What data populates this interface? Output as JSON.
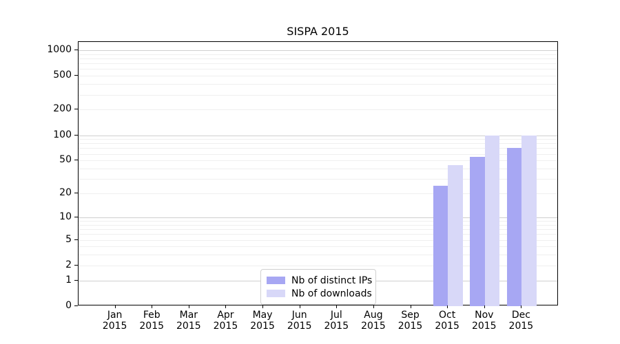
{
  "chart_data": {
    "type": "bar",
    "title": "SISPA 2015",
    "categories": [
      "Jan\n2015",
      "Feb\n2015",
      "Mar\n2015",
      "Apr\n2015",
      "May\n2015",
      "Jun\n2015",
      "Jul\n2015",
      "Aug\n2015",
      "Sep\n2015",
      "Oct\n2015",
      "Nov\n2015",
      "Dec\n2015"
    ],
    "series": [
      {
        "name": "Nb of distinct IPs",
        "color": "#a7a7f3",
        "values": [
          0,
          0,
          0,
          0,
          0,
          0,
          0,
          0,
          0,
          25,
          55,
          70
        ]
      },
      {
        "name": "Nb of downloads",
        "color": "#d8d8f8",
        "values": [
          0,
          0,
          0,
          0,
          0,
          0,
          0,
          0,
          0,
          44,
          100,
          100
        ]
      }
    ],
    "yticks": [
      0,
      1,
      2,
      5,
      10,
      20,
      50,
      100,
      200,
      500,
      1000
    ],
    "ylim": [
      0,
      1250
    ],
    "xlabel": "",
    "ylabel": "",
    "yscale": "log(1+x)",
    "grid": "horizontal major+minor",
    "legend_position": "lower center inside"
  }
}
